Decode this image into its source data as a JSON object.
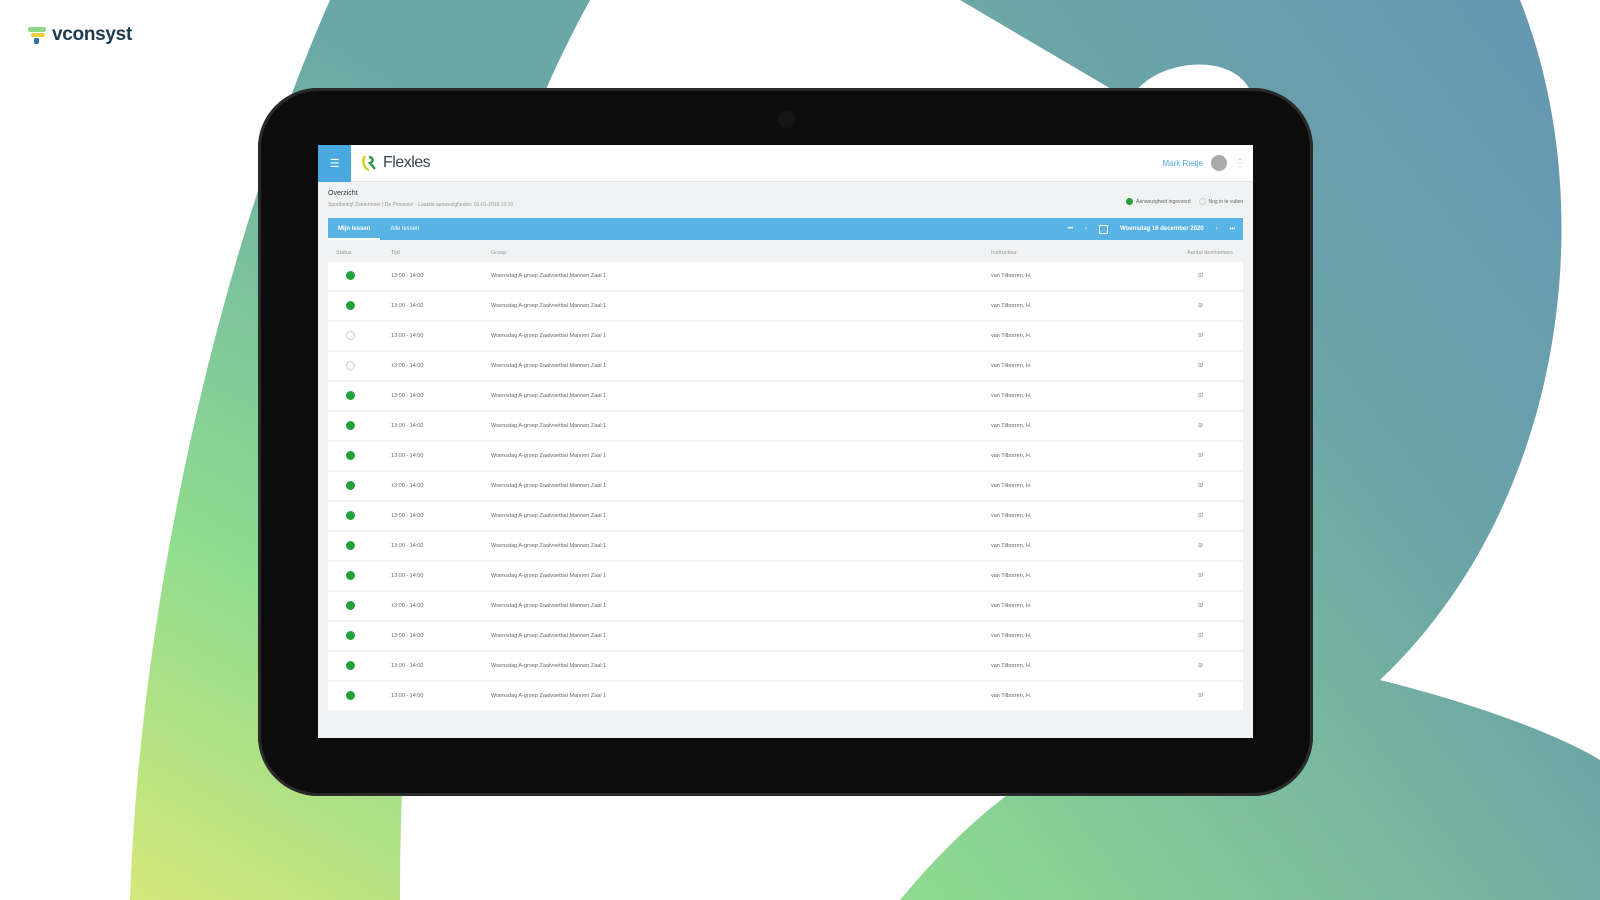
{
  "brand": {
    "name": "vconsyst"
  },
  "app": {
    "logo": "Flexles",
    "user": "Mark Rietje",
    "page_title": "Overzicht",
    "subtitle": "Sportbedrijf Zoetermeer | De Pinnenier - Laatste aanwezigheden: 01-01-2018 10:10",
    "legend": [
      {
        "label": "Aanwezigheid ingevoerd",
        "color": "#22a03a"
      },
      {
        "label": "Nog in te vullen",
        "color": "#ffffff"
      }
    ],
    "tabs": [
      {
        "label": "Mijn lessen",
        "active": true
      },
      {
        "label": "Alle lessen",
        "active": false
      }
    ],
    "date": "Woensdag 16 december 2020",
    "columns": [
      "Status",
      "Tijd",
      "Groep",
      "Instructeur",
      "Aantal deelnemers"
    ],
    "rows": [
      {
        "status": "done",
        "time": "13:00 - 14:00",
        "group": "Woensdag A-groep Zaalvoetbal Mannen Zaal 1",
        "instructor": "van Tilborren, H.",
        "count": "0/"
      },
      {
        "status": "done",
        "time": "13:00 - 14:00",
        "group": "Woensdag A-groep Zaalvoetbal Mannen Zaal 1",
        "instructor": "van Tilborren, H.",
        "count": "0/"
      },
      {
        "status": "open",
        "time": "13:00 - 14:00",
        "group": "Woensdag A-groep Zaalvoetbal Mannen Zaal 1",
        "instructor": "van Tilborren, H.",
        "count": "0/"
      },
      {
        "status": "open",
        "time": "13:00 - 14:00",
        "group": "Woensdag A-groep Zaalvoetbal Mannen Zaal 1",
        "instructor": "van Tilborren, H.",
        "count": "0/"
      },
      {
        "status": "done",
        "time": "13:00 - 14:00",
        "group": "Woensdag A-groep Zaalvoetbal Mannen Zaal 1",
        "instructor": "van Tilborren, H.",
        "count": "0/"
      },
      {
        "status": "done",
        "time": "13:00 - 14:00",
        "group": "Woensdag A-groep Zaalvoetbal Mannen Zaal 1",
        "instructor": "van Tilborren, H.",
        "count": "0/"
      },
      {
        "status": "done",
        "time": "13:00 - 14:00",
        "group": "Woensdag A-groep Zaalvoetbal Mannen Zaal 1",
        "instructor": "van Tilborren, H.",
        "count": "0/"
      },
      {
        "status": "done",
        "time": "13:00 - 14:00",
        "group": "Woensdag A-groep Zaalvoetbal Mannen Zaal 1",
        "instructor": "van Tilborren, H.",
        "count": "0/"
      },
      {
        "status": "done",
        "time": "13:00 - 14:00",
        "group": "Woensdag A-groep Zaalvoetbal Mannen Zaal 1",
        "instructor": "van Tilborren, H.",
        "count": "0/"
      },
      {
        "status": "done",
        "time": "13:00 - 14:00",
        "group": "Woensdag A-groep Zaalvoetbal Mannen Zaal 1",
        "instructor": "van Tilborren, H.",
        "count": "0/"
      },
      {
        "status": "done",
        "time": "13:00 - 14:00",
        "group": "Woensdag A-groep Zaalvoetbal Mannen Zaal 1",
        "instructor": "van Tilborren, H.",
        "count": "0/"
      },
      {
        "status": "done",
        "time": "13:00 - 14:00",
        "group": "Woensdag A-groep Zaalvoetbal Mannen Zaal 1",
        "instructor": "van Tilborren, H.",
        "count": "0/"
      },
      {
        "status": "done",
        "time": "13:00 - 14:00",
        "group": "Woensdag A-groep Zaalvoetbal Mannen Zaal 1",
        "instructor": "van Tilborren, H.",
        "count": "0/"
      },
      {
        "status": "done",
        "time": "13:00 - 14:00",
        "group": "Woensdag A-groep Zaalvoetbal Mannen Zaal 1",
        "instructor": "van Tilborren, H.",
        "count": "0/"
      },
      {
        "status": "done",
        "time": "13:00 - 14:00",
        "group": "Woensdag A-groep Zaalvoetbal Mannen Zaal 1",
        "instructor": "van Tilborren, H.",
        "count": "0/"
      }
    ]
  }
}
